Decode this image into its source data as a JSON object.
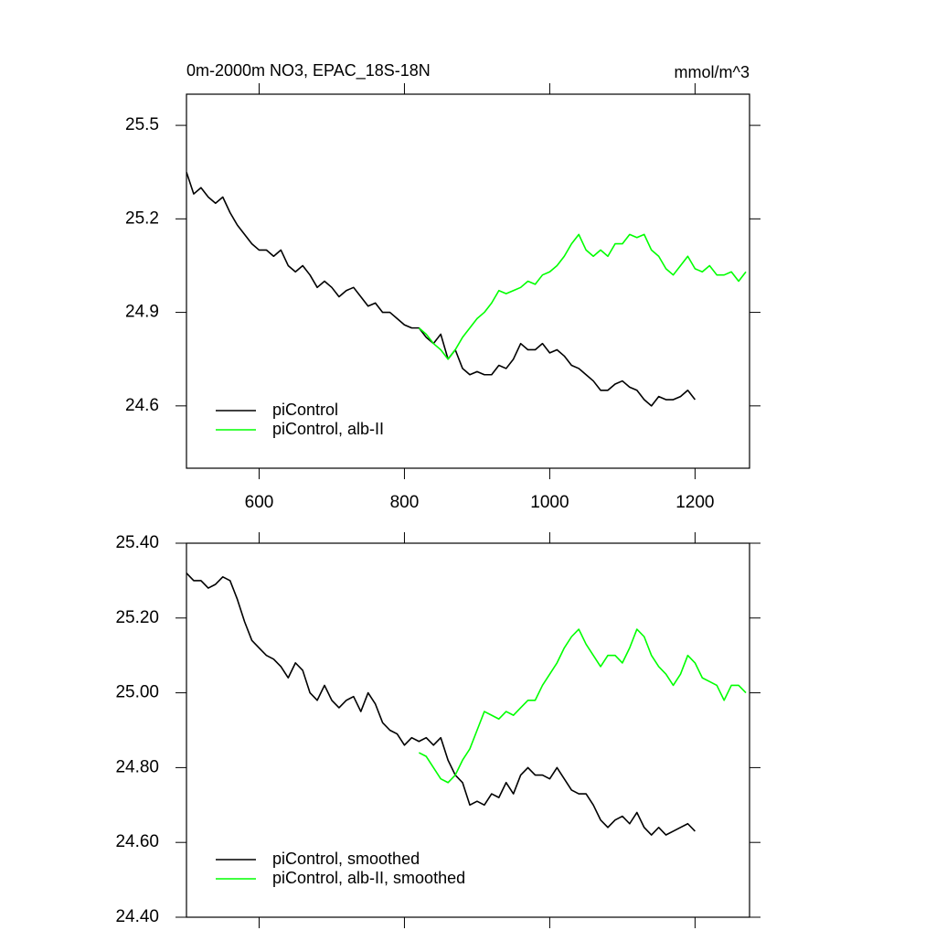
{
  "chart_data": [
    {
      "type": "line",
      "title": "0m-2000m NO3, EPAC_18S-18N",
      "units": "mmol/m^3",
      "xlim": [
        500,
        1275
      ],
      "xticks": [
        600,
        800,
        1000,
        1200
      ],
      "ylim": [
        24.4,
        25.6
      ],
      "yticks": [
        24.6,
        24.9,
        25.2,
        25.5
      ],
      "legend": "lower left",
      "series": [
        {
          "name": "piControl",
          "color": "#000000",
          "x": [
            500,
            510,
            520,
            530,
            540,
            550,
            560,
            570,
            580,
            590,
            600,
            610,
            620,
            630,
            640,
            650,
            660,
            670,
            680,
            690,
            700,
            710,
            720,
            730,
            740,
            750,
            760,
            770,
            780,
            790,
            800,
            810,
            820,
            830,
            840,
            850,
            860,
            870,
            880,
            890,
            900,
            910,
            920,
            930,
            940,
            950,
            960,
            970,
            980,
            990,
            1000,
            1010,
            1020,
            1030,
            1040,
            1050,
            1060,
            1070,
            1080,
            1090,
            1100,
            1110,
            1120,
            1130,
            1140,
            1150,
            1160,
            1170,
            1180,
            1190,
            1200
          ],
          "values": [
            25.35,
            25.28,
            25.3,
            25.27,
            25.25,
            25.27,
            25.22,
            25.18,
            25.15,
            25.12,
            25.1,
            25.1,
            25.08,
            25.1,
            25.05,
            25.03,
            25.05,
            25.02,
            24.98,
            25.0,
            24.98,
            24.95,
            24.97,
            24.98,
            24.95,
            24.92,
            24.93,
            24.9,
            24.9,
            24.88,
            24.86,
            24.85,
            24.85,
            24.82,
            24.8,
            24.83,
            24.75,
            24.78,
            24.72,
            24.7,
            24.71,
            24.7,
            24.7,
            24.73,
            24.72,
            24.75,
            24.8,
            24.78,
            24.78,
            24.8,
            24.77,
            24.78,
            24.76,
            24.73,
            24.72,
            24.7,
            24.68,
            24.65,
            24.65,
            24.67,
            24.68,
            24.66,
            24.65,
            24.62,
            24.6,
            24.63,
            24.62,
            24.62,
            24.63,
            24.65,
            24.62
          ]
        },
        {
          "name": "piControl, alb-II",
          "color": "#00ff00",
          "x": [
            820,
            830,
            840,
            850,
            860,
            870,
            880,
            890,
            900,
            910,
            920,
            930,
            940,
            950,
            960,
            970,
            980,
            990,
            1000,
            1010,
            1020,
            1030,
            1040,
            1050,
            1060,
            1070,
            1080,
            1090,
            1100,
            1110,
            1120,
            1130,
            1140,
            1150,
            1160,
            1170,
            1180,
            1190,
            1200,
            1210,
            1220,
            1230,
            1240,
            1250,
            1260,
            1270
          ],
          "values": [
            24.85,
            24.83,
            24.8,
            24.78,
            24.75,
            24.78,
            24.82,
            24.85,
            24.88,
            24.9,
            24.93,
            24.97,
            24.96,
            24.97,
            24.98,
            25.0,
            24.99,
            25.02,
            25.03,
            25.05,
            25.08,
            25.12,
            25.15,
            25.1,
            25.08,
            25.1,
            25.08,
            25.12,
            25.12,
            25.15,
            25.14,
            25.15,
            25.1,
            25.08,
            25.04,
            25.02,
            25.05,
            25.08,
            25.04,
            25.03,
            25.05,
            25.02,
            25.02,
            25.03,
            25.0,
            25.03
          ]
        }
      ]
    },
    {
      "type": "line",
      "xlim": [
        500,
        1275
      ],
      "xticks": [
        {
          "value": 600,
          "label": null
        },
        {
          "value": 800,
          "label": null
        },
        {
          "value": 1000,
          "label": null
        },
        {
          "value": 1200,
          "label": null
        }
      ],
      "ylim": [
        24.4,
        25.4
      ],
      "yticks": [
        {
          "value": 24.4,
          "label": "24.40"
        },
        {
          "value": 24.6,
          "label": "24.60"
        },
        {
          "value": 24.8,
          "label": "24.80"
        },
        {
          "value": 25.0,
          "label": "25.00"
        },
        {
          "value": 25.2,
          "label": "25.20"
        },
        {
          "value": 25.4,
          "label": "25.40"
        }
      ],
      "legend": "lower left",
      "series": [
        {
          "name": "piControl, smoothed",
          "color": "#000000",
          "x": [
            500,
            510,
            520,
            530,
            540,
            550,
            560,
            570,
            580,
            590,
            600,
            610,
            620,
            630,
            640,
            650,
            660,
            670,
            680,
            690,
            700,
            710,
            720,
            730,
            740,
            750,
            760,
            770,
            780,
            790,
            800,
            810,
            820,
            830,
            840,
            850,
            860,
            870,
            880,
            890,
            900,
            910,
            920,
            930,
            940,
            950,
            960,
            970,
            980,
            990,
            1000,
            1010,
            1020,
            1030,
            1040,
            1050,
            1060,
            1070,
            1080,
            1090,
            1100,
            1110,
            1120,
            1130,
            1140,
            1150,
            1160,
            1170,
            1180,
            1190,
            1200
          ],
          "values": [
            25.32,
            25.3,
            25.3,
            25.28,
            25.29,
            25.31,
            25.3,
            25.25,
            25.19,
            25.14,
            25.12,
            25.1,
            25.09,
            25.07,
            25.04,
            25.08,
            25.06,
            25.0,
            24.98,
            25.02,
            24.98,
            24.96,
            24.98,
            24.99,
            24.95,
            25.0,
            24.97,
            24.92,
            24.9,
            24.89,
            24.86,
            24.88,
            24.87,
            24.88,
            24.86,
            24.88,
            24.82,
            24.78,
            24.76,
            24.7,
            24.71,
            24.7,
            24.73,
            24.72,
            24.76,
            24.73,
            24.78,
            24.8,
            24.78,
            24.78,
            24.77,
            24.8,
            24.77,
            24.74,
            24.73,
            24.73,
            24.7,
            24.66,
            24.64,
            24.66,
            24.67,
            24.65,
            24.68,
            24.64,
            24.62,
            24.64,
            24.62,
            24.63,
            24.64,
            24.65,
            24.63
          ]
        },
        {
          "name": "piControl, alb-II, smoothed",
          "color": "#00ff00",
          "x": [
            820,
            830,
            840,
            850,
            860,
            870,
            880,
            890,
            900,
            910,
            920,
            930,
            940,
            950,
            960,
            970,
            980,
            990,
            1000,
            1010,
            1020,
            1030,
            1040,
            1050,
            1060,
            1070,
            1080,
            1090,
            1100,
            1110,
            1120,
            1130,
            1140,
            1150,
            1160,
            1170,
            1180,
            1190,
            1200,
            1210,
            1220,
            1230,
            1240,
            1250,
            1260,
            1270
          ],
          "values": [
            24.84,
            24.83,
            24.8,
            24.77,
            24.76,
            24.78,
            24.82,
            24.85,
            24.9,
            24.95,
            24.94,
            24.93,
            24.95,
            24.94,
            24.96,
            24.98,
            24.98,
            25.02,
            25.05,
            25.08,
            25.12,
            25.15,
            25.17,
            25.13,
            25.1,
            25.07,
            25.1,
            25.1,
            25.08,
            25.12,
            25.17,
            25.15,
            25.1,
            25.07,
            25.05,
            25.02,
            25.05,
            25.1,
            25.08,
            25.04,
            25.03,
            25.02,
            24.98,
            25.02,
            25.02,
            25.0
          ]
        }
      ]
    }
  ]
}
